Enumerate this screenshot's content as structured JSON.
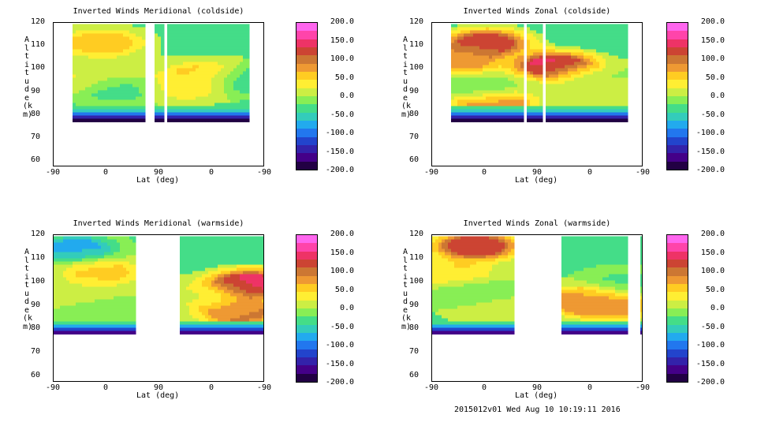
{
  "footer": "2015012v01 Wed Aug 10 10:19:11 2016",
  "colorbar": {
    "labels": [
      "200.0",
      "150.0",
      "100.0",
      "50.0",
      "0.0",
      "-50.0",
      "-100.0",
      "-150.0",
      "-200.0"
    ],
    "colors": [
      "#ff66ee",
      "#ff44aa",
      "#ee3366",
      "#cc4433",
      "#cc7733",
      "#ee9933",
      "#ffcc22",
      "#ffee33",
      "#ccee44",
      "#88ee55",
      "#44dd88",
      "#33ccbb",
      "#22aaee",
      "#2277ee",
      "#2244cc",
      "#3322aa",
      "#440088",
      "#220044"
    ]
  },
  "chart_data": [
    {
      "type": "heatmap",
      "title": "Inverted Winds Meridional (coldside)",
      "xlabel": "Lat (deg)",
      "ylabel": "Altitude (km)",
      "xticks": [
        "-90",
        "0",
        "90",
        "0",
        "-90"
      ],
      "yticks": [
        "120",
        "110",
        "100",
        "90",
        "80",
        "70",
        "60"
      ],
      "ylim": [
        58,
        120
      ],
      "zrange": [
        -200,
        200
      ],
      "blobs": [
        {
          "x": 0.27,
          "y": 100,
          "v": 10
        },
        {
          "x": 0.22,
          "y": 112,
          "v": 60
        },
        {
          "x": 0.1,
          "y": 96,
          "v": 30
        },
        {
          "x": 0.3,
          "y": 92,
          "v": -40
        },
        {
          "x": 0.72,
          "y": 98,
          "v": 55
        },
        {
          "x": 0.62,
          "y": 93,
          "v": 40
        },
        {
          "x": 0.9,
          "y": 96,
          "v": -60
        }
      ]
    },
    {
      "type": "heatmap",
      "title": "Inverted Winds Zonal (coldside)",
      "xlabel": "Lat (deg)",
      "ylabel": "Altitude (km)",
      "xticks": [
        "-90",
        "0",
        "90",
        "0",
        "-90"
      ],
      "yticks": [
        "120",
        "110",
        "100",
        "90",
        "80",
        "70",
        "60"
      ],
      "ylim": [
        58,
        120
      ],
      "zrange": [
        -200,
        200
      ],
      "blobs": [
        {
          "x": 0.25,
          "y": 112,
          "v": 120
        },
        {
          "x": 0.12,
          "y": 104,
          "v": 70
        },
        {
          "x": 0.22,
          "y": 92,
          "v": -30
        },
        {
          "x": 0.28,
          "y": 86,
          "v": 90
        },
        {
          "x": 0.58,
          "y": 102,
          "v": 140
        },
        {
          "x": 0.75,
          "y": 97,
          "v": -10
        },
        {
          "x": 0.85,
          "y": 90,
          "v": 20
        }
      ]
    },
    {
      "type": "heatmap",
      "title": "Inverted Winds Meridional (warmside)",
      "xlabel": "Lat (deg)",
      "ylabel": "Altitude (km)",
      "xticks": [
        "-90",
        "0",
        "90",
        "0",
        "-90"
      ],
      "yticks": [
        "120",
        "110",
        "100",
        "90",
        "80",
        "70",
        "60"
      ],
      "ylim": [
        58,
        120
      ],
      "zrange": [
        -200,
        200
      ],
      "blobs": [
        {
          "x": 0.1,
          "y": 115,
          "v": -70
        },
        {
          "x": 0.22,
          "y": 105,
          "v": 50
        },
        {
          "x": 0.12,
          "y": 95,
          "v": 10
        },
        {
          "x": 0.25,
          "y": 88,
          "v": -20
        },
        {
          "x": 0.7,
          "y": 95,
          "v": 15
        },
        {
          "x": 0.93,
          "y": 100,
          "v": 140
        },
        {
          "x": 0.88,
          "y": 88,
          "v": 90
        }
      ]
    },
    {
      "type": "heatmap",
      "title": "Inverted Winds Zonal (warmside)",
      "xlabel": "Lat (deg)",
      "ylabel": "Altitude (km)",
      "xticks": [
        "-90",
        "0",
        "90",
        "0",
        "-90"
      ],
      "yticks": [
        "120",
        "110",
        "100",
        "90",
        "80",
        "70",
        "60"
      ],
      "ylim": [
        58,
        120
      ],
      "zrange": [
        -200,
        200
      ],
      "blobs": [
        {
          "x": 0.2,
          "y": 116,
          "v": 130
        },
        {
          "x": 0.1,
          "y": 104,
          "v": 40
        },
        {
          "x": 0.2,
          "y": 96,
          "v": -30
        },
        {
          "x": 0.3,
          "y": 90,
          "v": 20
        },
        {
          "x": 0.72,
          "y": 93,
          "v": 70
        },
        {
          "x": 0.83,
          "y": 91,
          "v": 90
        },
        {
          "x": 0.92,
          "y": 100,
          "v": -30
        }
      ]
    }
  ]
}
